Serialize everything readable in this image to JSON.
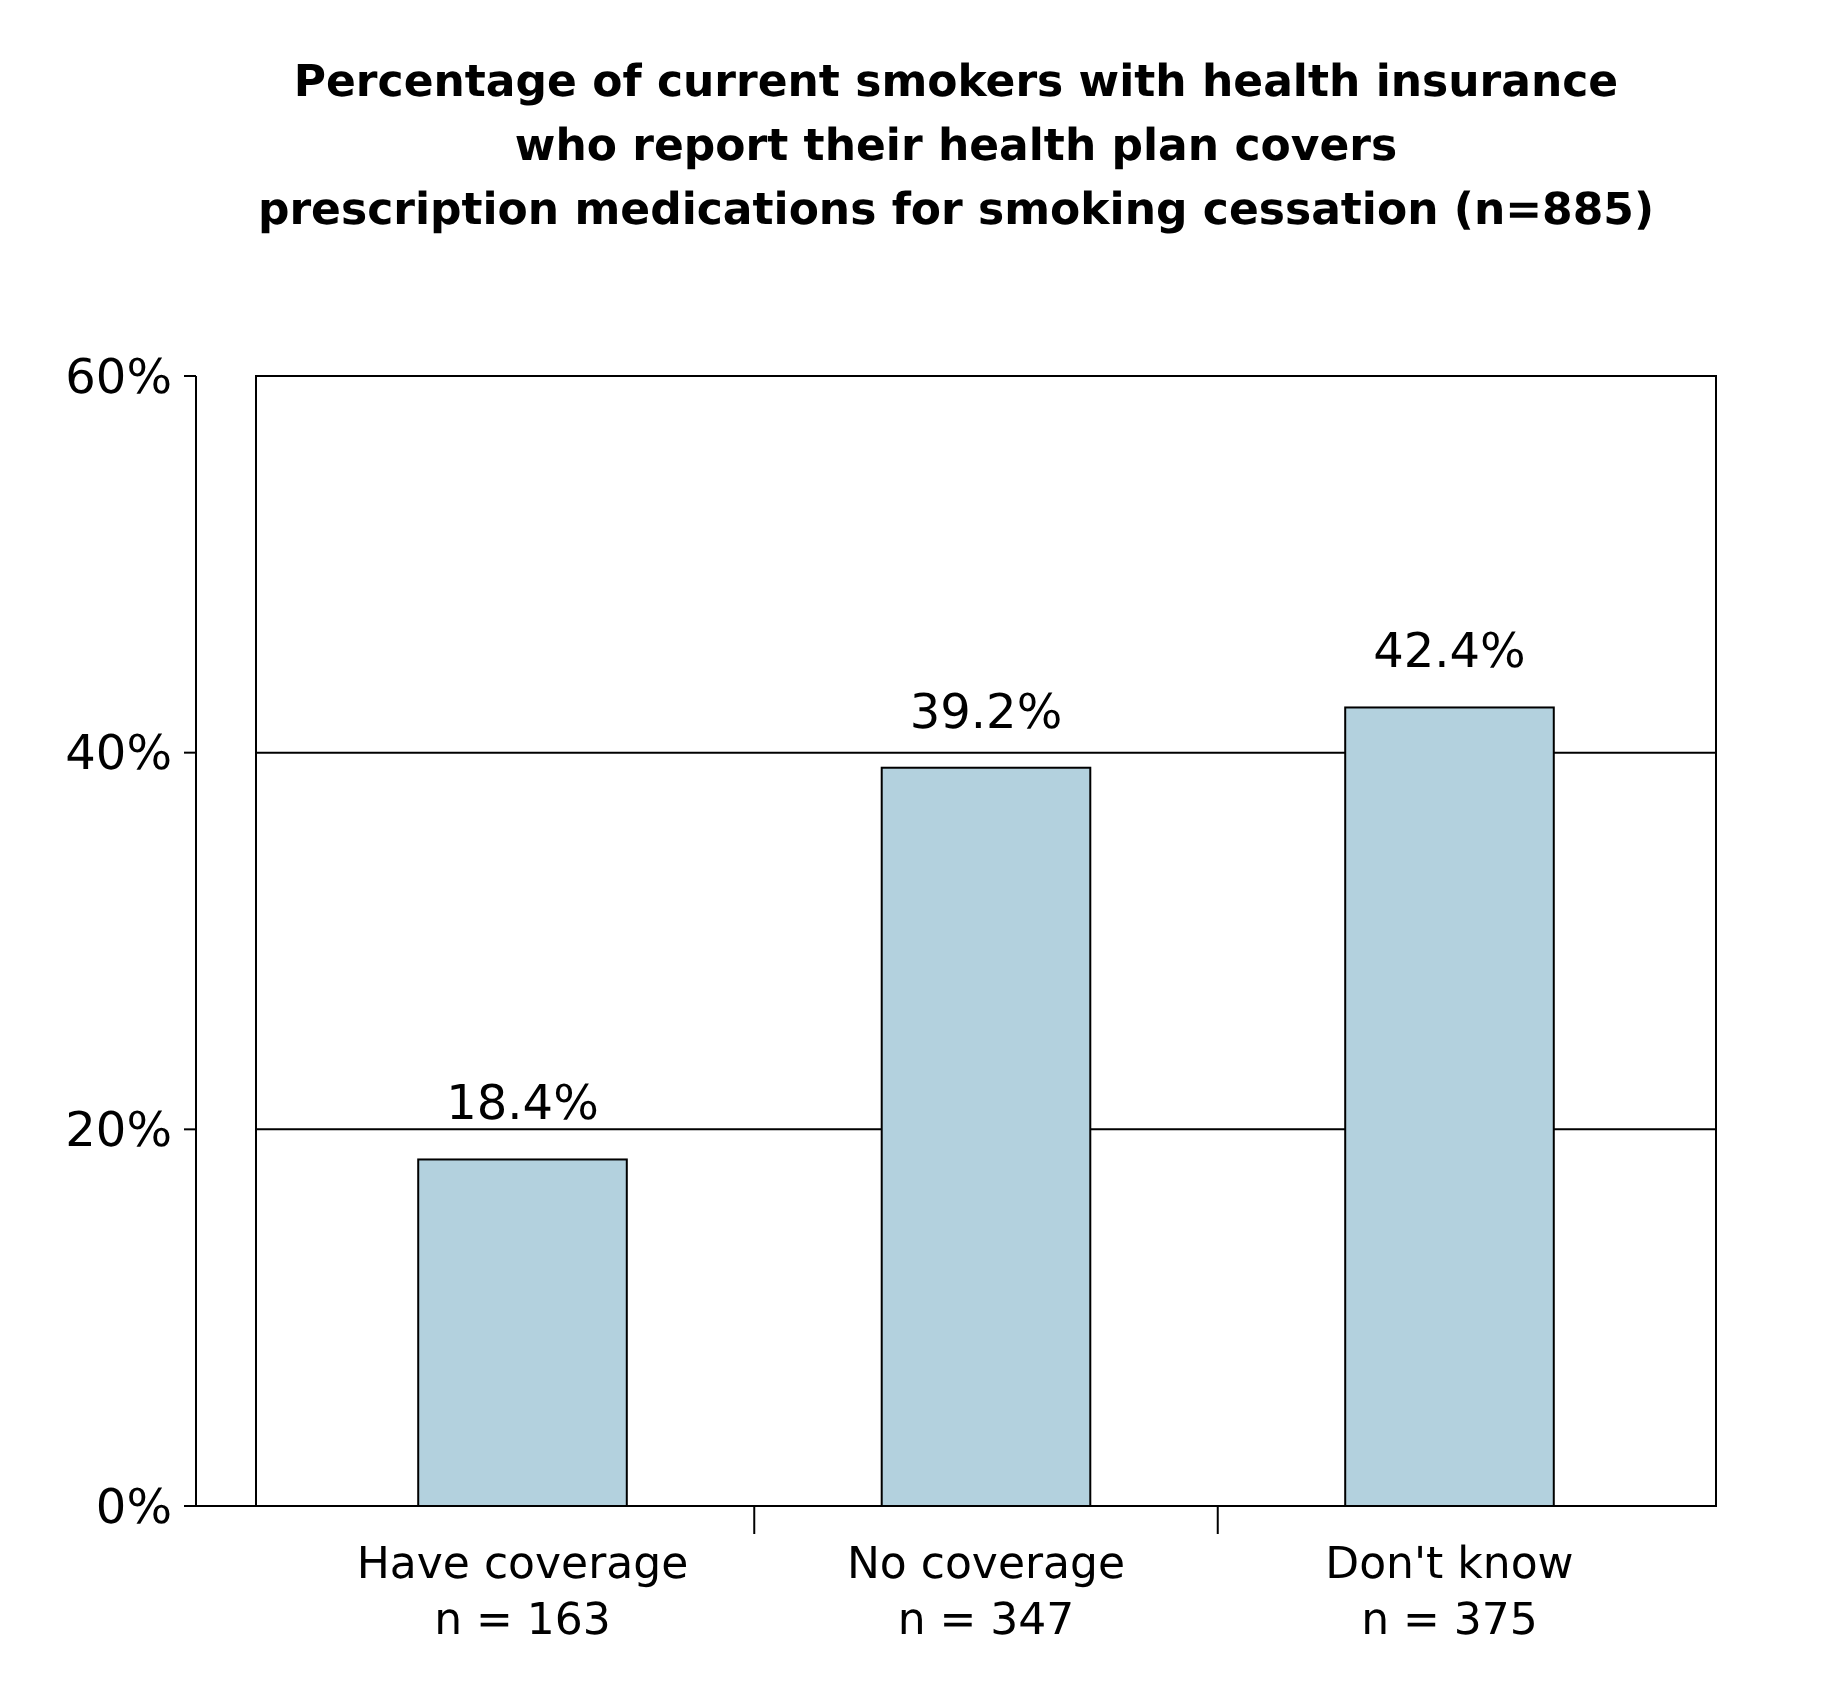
{
  "chart_data": {
    "type": "bar",
    "title": "Percentage of current smokers with health insurance\nwho report their health plan covers\nprescription medications for smoking cessation (n=885)",
    "categories": [
      "Have coverage\nn = 163",
      "No coverage\nn = 347",
      "Don't know\nn = 375"
    ],
    "values": [
      18.4,
      39.2,
      42.4
    ],
    "value_labels": [
      "18.4%",
      "39.2%",
      "42.4%"
    ],
    "color": "#b3d1de",
    "ylim": [
      0,
      60
    ],
    "yticks": [
      {
        "value": 0,
        "label": "0%"
      },
      {
        "value": 20,
        "label": "20%"
      },
      {
        "value": 40,
        "label": "40%"
      },
      {
        "value": 60,
        "label": "60%"
      }
    ],
    "grid": "y"
  }
}
